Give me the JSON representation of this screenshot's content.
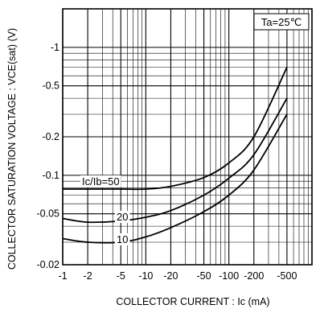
{
  "chart_data": {
    "type": "line",
    "title": "",
    "xlabel": "COLLECTOR CURRENT : Ic (mA)",
    "ylabel": "COLLECTOR SATURATION VOLTAGE : VCE(sat) (V)",
    "x_scale": "log",
    "y_scale": "log",
    "xlim": [
      -1,
      -1000
    ],
    "ylim": [
      -0.02,
      -2
    ],
    "grid": true,
    "annotation": "Ta=25℃",
    "x_ticks": [
      -1,
      -2,
      -5,
      -10,
      -20,
      -50,
      -100,
      -200,
      -500
    ],
    "x_tick_labels": [
      "-1",
      "-2",
      "-5",
      "-10",
      "-20",
      "-50",
      "-100",
      "-200",
      "-500"
    ],
    "y_ticks": [
      -0.02,
      -0.05,
      -0.1,
      -0.2,
      -0.5,
      -1
    ],
    "y_tick_labels": [
      "-0.02",
      "-0.05",
      "-0.1",
      "-0.2",
      "-0.5",
      "-1"
    ],
    "series": [
      {
        "name": "Ic/Ib=50",
        "label": "Ic/Ib=50",
        "x": [
          -1,
          -2,
          -5,
          -10,
          -20,
          -50,
          -100,
          -200,
          -500
        ],
        "y": [
          -0.078,
          -0.078,
          -0.078,
          -0.078,
          -0.082,
          -0.096,
          -0.125,
          -0.2,
          -0.7
        ]
      },
      {
        "name": "20",
        "label": "20",
        "x": [
          -1,
          -2,
          -5,
          -10,
          -20,
          -50,
          -100,
          -200,
          -500
        ],
        "y": [
          -0.046,
          -0.043,
          -0.044,
          -0.047,
          -0.053,
          -0.07,
          -0.095,
          -0.145,
          -0.4
        ]
      },
      {
        "name": "10",
        "label": "10",
        "x": [
          -1,
          -2,
          -5,
          -10,
          -20,
          -50,
          -100,
          -200,
          -500
        ],
        "y": [
          -0.032,
          -0.03,
          -0.03,
          -0.033,
          -0.039,
          -0.052,
          -0.07,
          -0.11,
          -0.3
        ]
      }
    ]
  }
}
